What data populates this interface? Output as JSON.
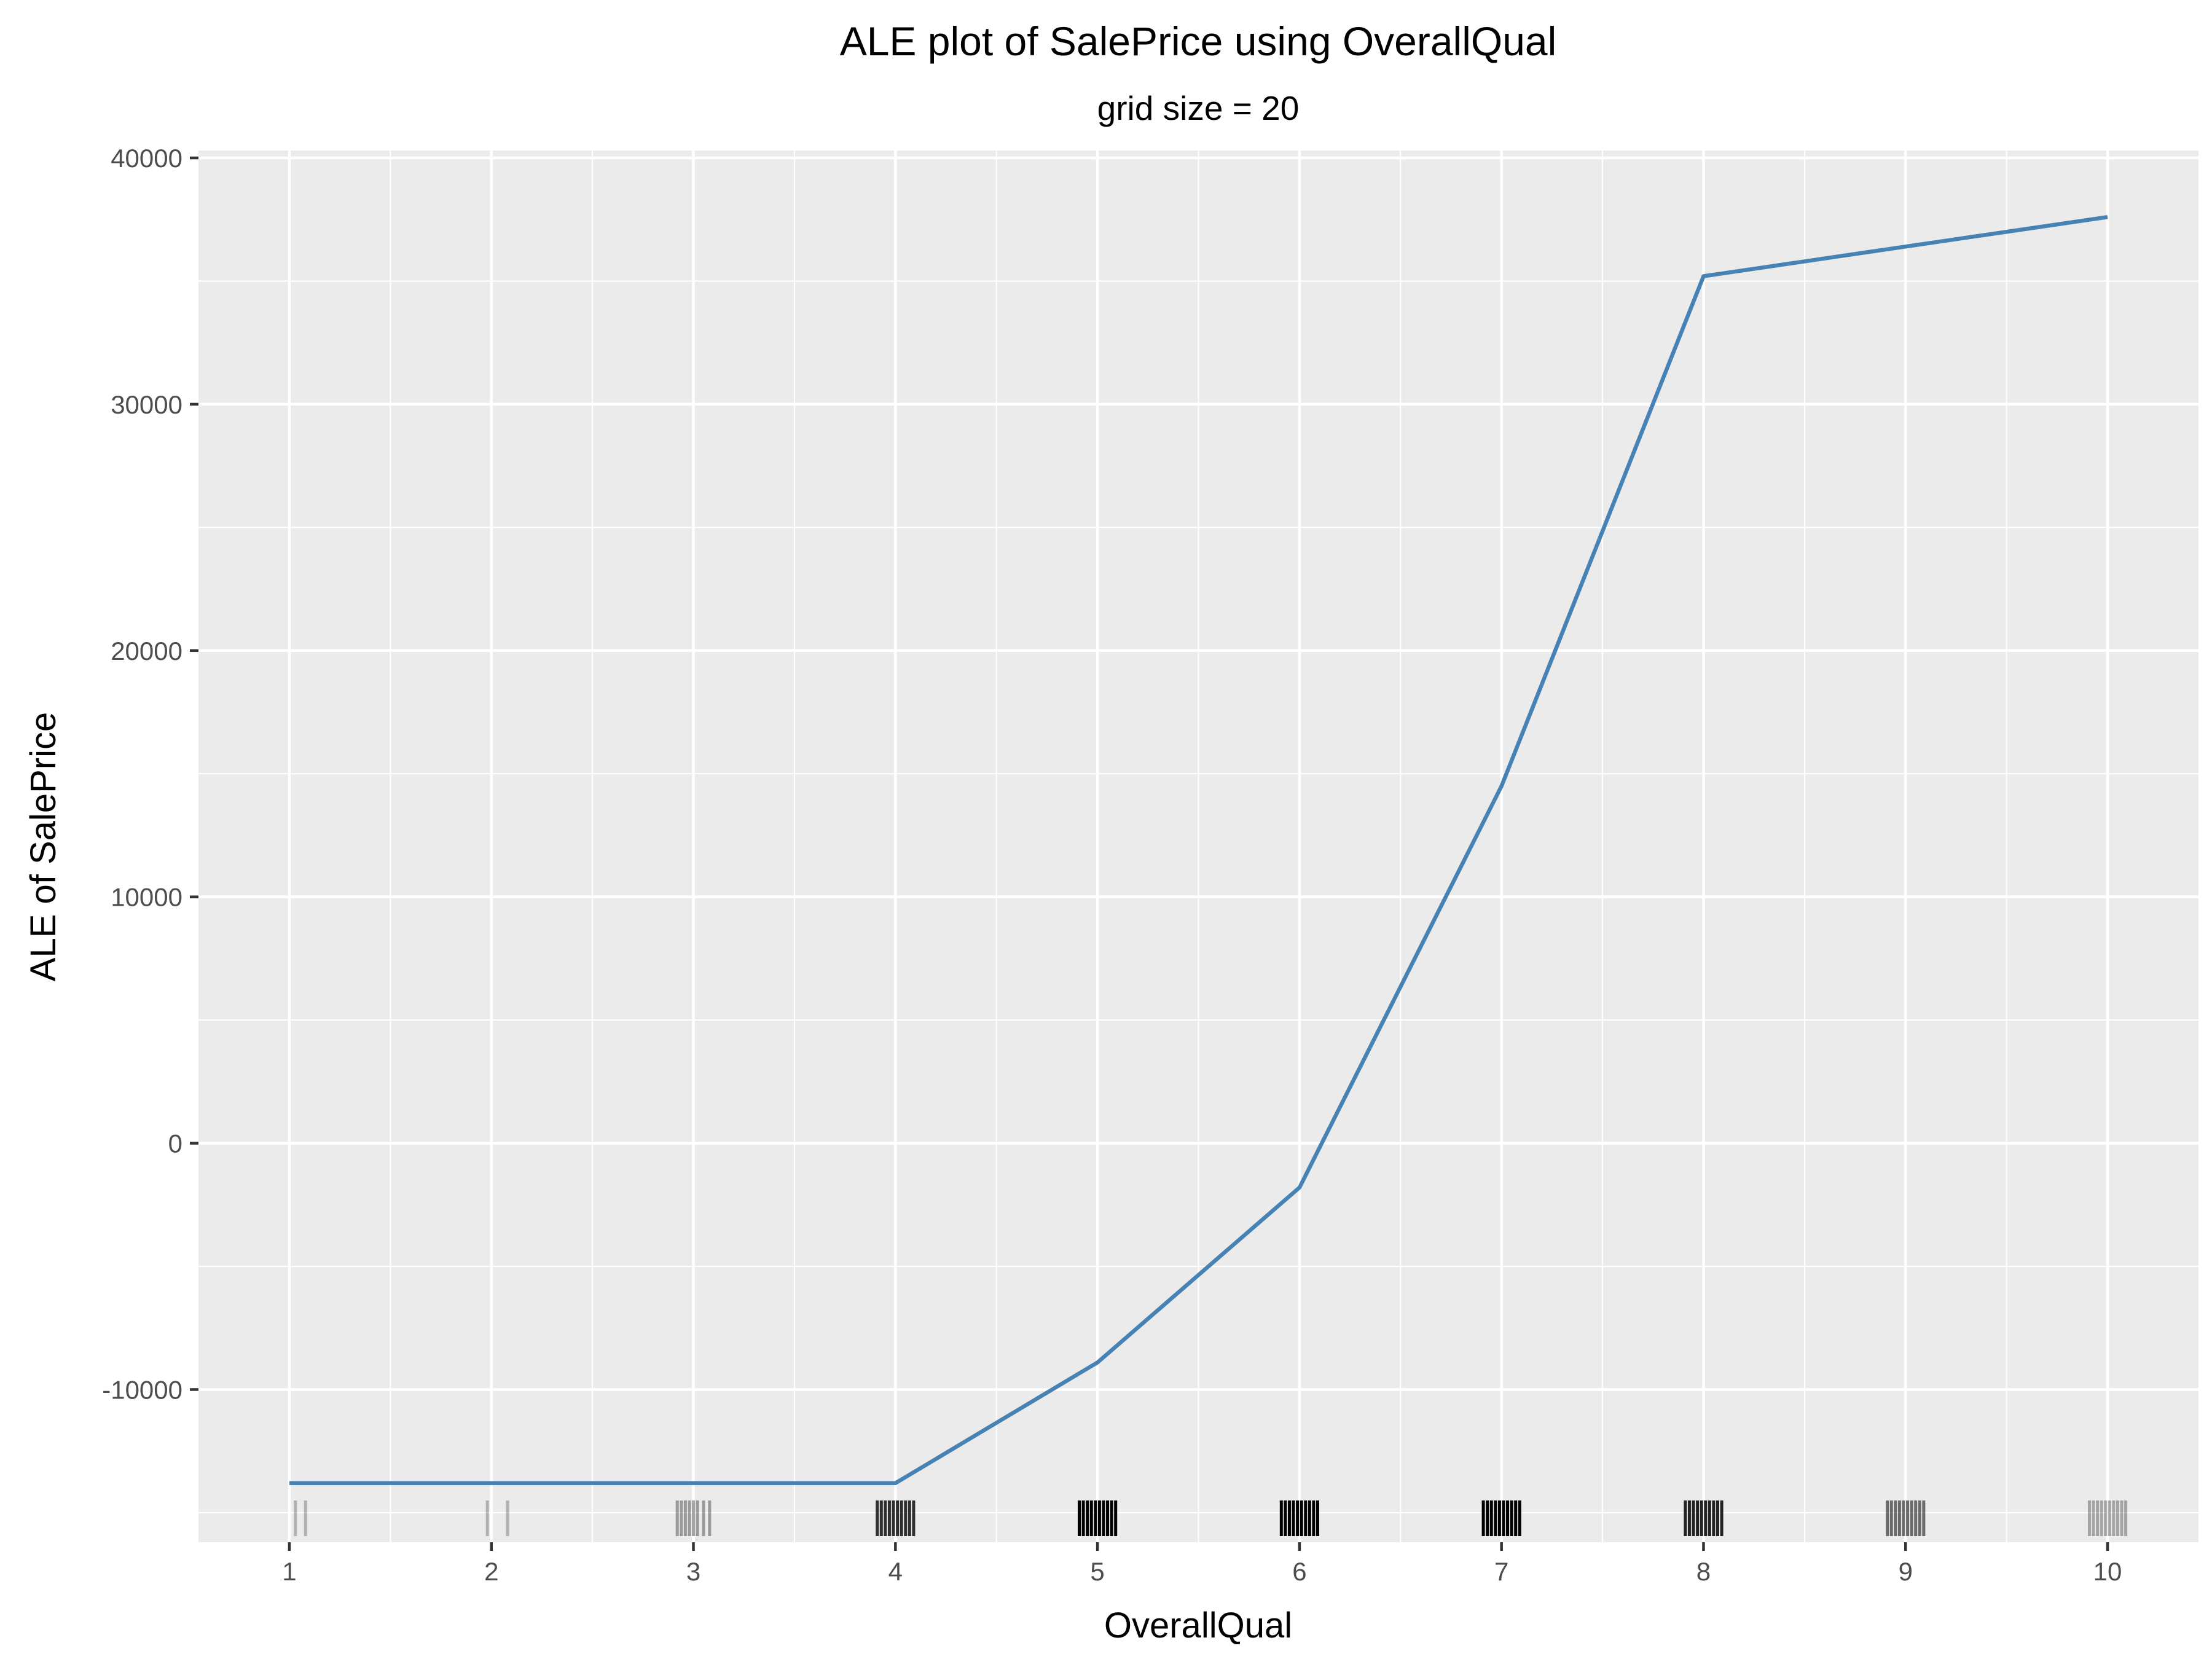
{
  "chart_data": {
    "type": "line",
    "title": "ALE plot of SalePrice using OverallQual",
    "subtitle": "grid size = 20",
    "xlabel": "OverallQual",
    "ylabel": "ALE of SalePrice",
    "xlim": [
      0.55,
      10.45
    ],
    "ylim": [
      -16200,
      40300
    ],
    "xticks": [
      1,
      2,
      3,
      4,
      5,
      6,
      7,
      8,
      9,
      10
    ],
    "xtick_labels": [
      "1",
      "2",
      "3",
      "4",
      "5",
      "6",
      "7",
      "8",
      "9",
      "10"
    ],
    "yticks": [
      -10000,
      0,
      10000,
      20000,
      30000,
      40000
    ],
    "ytick_labels": [
      "-10000",
      "0",
      "10000",
      "20000",
      "30000",
      "40000"
    ],
    "grid": true,
    "panel_background": "#ebebeb",
    "series": [
      {
        "color": "#4682b4",
        "x": [
          1,
          2,
          3,
          4,
          5,
          6,
          7,
          8,
          9,
          10
        ],
        "y": [
          -13800,
          -13800,
          -13800,
          -13800,
          -8900,
          -1800,
          14500,
          35200,
          36400,
          37600
        ]
      }
    ],
    "rug": {
      "color": "#000000",
      "groups": [
        {
          "x": 1,
          "offsets": [
            0.03,
            0.08
          ],
          "opacity": 0.25
        },
        {
          "x": 2,
          "offsets": [
            -0.02,
            0.08
          ],
          "opacity": 0.25
        },
        {
          "x": 3,
          "offsets": [
            -0.08,
            -0.06,
            -0.04,
            -0.02,
            0.0,
            0.02,
            0.05,
            0.08
          ],
          "opacity": 0.35
        },
        {
          "x": 4,
          "offsets": [
            -0.09,
            -0.07,
            -0.05,
            -0.03,
            -0.01,
            0.01,
            0.03,
            0.05,
            0.07,
            0.09
          ],
          "opacity": 0.8
        },
        {
          "x": 5,
          "offsets": [
            -0.09,
            -0.07,
            -0.05,
            -0.03,
            -0.01,
            0.01,
            0.03,
            0.05,
            0.07,
            0.09
          ],
          "opacity": 1.0
        },
        {
          "x": 6,
          "offsets": [
            -0.09,
            -0.07,
            -0.05,
            -0.03,
            -0.01,
            0.01,
            0.03,
            0.05,
            0.07,
            0.09
          ],
          "opacity": 1.0
        },
        {
          "x": 7,
          "offsets": [
            -0.09,
            -0.07,
            -0.05,
            -0.03,
            -0.01,
            0.01,
            0.03,
            0.05,
            0.07,
            0.09
          ],
          "opacity": 1.0
        },
        {
          "x": 8,
          "offsets": [
            -0.09,
            -0.07,
            -0.05,
            -0.03,
            -0.01,
            0.01,
            0.03,
            0.05,
            0.07,
            0.09
          ],
          "opacity": 0.85
        },
        {
          "x": 9,
          "offsets": [
            -0.09,
            -0.07,
            -0.05,
            -0.03,
            -0.01,
            0.01,
            0.03,
            0.05,
            0.07,
            0.09
          ],
          "opacity": 0.55
        },
        {
          "x": 10,
          "offsets": [
            -0.09,
            -0.07,
            -0.05,
            -0.03,
            -0.01,
            0.01,
            0.03,
            0.05,
            0.07,
            0.09
          ],
          "opacity": 0.3
        }
      ]
    }
  }
}
